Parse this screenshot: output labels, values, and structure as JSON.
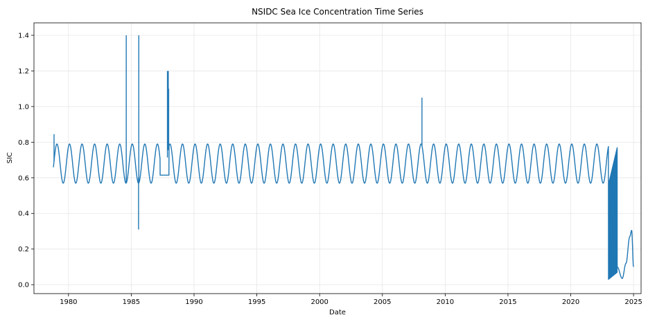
{
  "chart_data": {
    "type": "line",
    "title": "NSIDC Sea Ice Concentration Time Series",
    "xlabel": "Date",
    "ylabel": "SIC",
    "xlim": [
      1977.25,
      2025.6
    ],
    "ylim": [
      -0.05,
      1.47
    ],
    "grid": true,
    "color": "#1f77b4",
    "x_ticks": [
      1980,
      1985,
      1990,
      1995,
      2000,
      2005,
      2010,
      2015,
      2020,
      2025
    ],
    "x_tick_labels": [
      "1980",
      "1985",
      "1990",
      "1995",
      "2000",
      "2005",
      "2010",
      "2015",
      "2020",
      "2025"
    ],
    "y_ticks": [
      0.0,
      0.2,
      0.4,
      0.6,
      0.8,
      1.0,
      1.2,
      1.4
    ],
    "y_tick_labels": [
      "0.0",
      "0.2",
      "0.4",
      "0.6",
      "0.8",
      "1.0",
      "1.2",
      "1.4"
    ],
    "series": [
      {
        "name": "SIC",
        "start": 1978.8,
        "end": 2025.0,
        "seasonal_min": 0.57,
        "seasonal_max": 0.79,
        "gap_period": [
          1987.3,
          1988.0
        ],
        "gap_value": 0.615,
        "collapse_start": 2023.0,
        "collapse_end": 2023.7,
        "spikes": [
          {
            "x": 1978.85,
            "y": 0.845
          },
          {
            "x": 1984.6,
            "y": 1.4
          },
          {
            "x": 1985.6,
            "y": 1.4
          },
          {
            "x": 1985.58,
            "y": 0.31
          },
          {
            "x": 1987.88,
            "y": 1.2
          },
          {
            "x": 1987.95,
            "y": 1.2
          },
          {
            "x": 1987.98,
            "y": 1.1
          },
          {
            "x": 2008.15,
            "y": 1.05
          }
        ],
        "tail": [
          {
            "x": 2023.7,
            "y": 0.1
          },
          {
            "x": 2024.1,
            "y": 0.035
          },
          {
            "x": 2024.4,
            "y": 0.12
          },
          {
            "x": 2024.7,
            "y": 0.27
          },
          {
            "x": 2024.85,
            "y": 0.305
          },
          {
            "x": 2025.0,
            "y": 0.1
          }
        ]
      }
    ]
  }
}
